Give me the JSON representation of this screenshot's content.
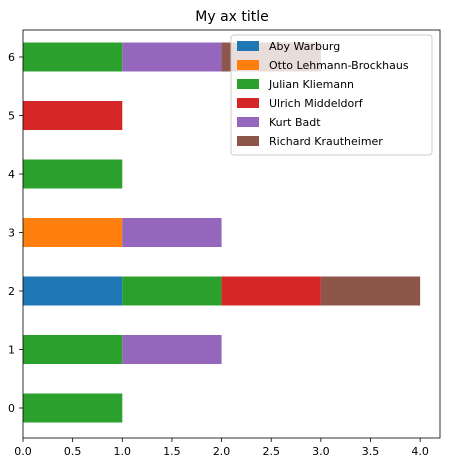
{
  "chart_data": {
    "type": "bar",
    "orientation": "horizontal",
    "stacked": true,
    "title": "My ax title",
    "xlabel": "",
    "ylabel": "",
    "xlim": [
      0,
      4.2
    ],
    "x_ticks": [
      "0.0",
      "0.5",
      "1.0",
      "1.5",
      "2.0",
      "2.5",
      "3.0",
      "3.5",
      "4.0"
    ],
    "categories": [
      "0",
      "1",
      "2",
      "3",
      "4",
      "5",
      "6"
    ],
    "series": [
      {
        "name": "Aby Warburg",
        "color": "#1f77b4",
        "values": [
          0,
          0,
          1,
          0,
          0,
          0,
          0
        ]
      },
      {
        "name": "Otto Lehmann-Brockhaus",
        "color": "#ff7f0e",
        "values": [
          0,
          0,
          0,
          1,
          0,
          0,
          0
        ]
      },
      {
        "name": "Julian Kliemann",
        "color": "#2ca02c",
        "values": [
          1,
          1,
          1,
          0,
          1,
          0,
          1
        ]
      },
      {
        "name": "Ulrich Middeldorf",
        "color": "#d62728",
        "values": [
          0,
          0,
          1,
          0,
          0,
          1,
          0
        ]
      },
      {
        "name": "Kurt Badt",
        "color": "#9467bd",
        "values": [
          0,
          1,
          0,
          1,
          0,
          0,
          1
        ]
      },
      {
        "name": "Richard Krautheimer",
        "color": "#8c564b",
        "values": [
          0,
          0,
          1,
          0,
          0,
          0,
          1
        ]
      }
    ],
    "legend_position": "upper-right",
    "grid": false
  }
}
